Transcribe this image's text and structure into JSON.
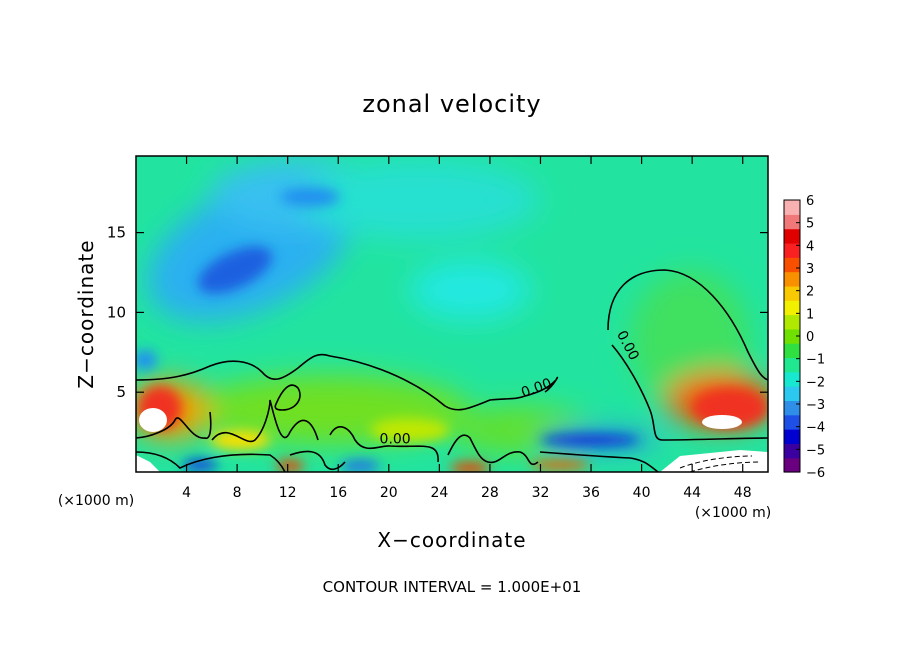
{
  "chart_data": {
    "type": "heatmap",
    "title": "zonal velocity",
    "xlabel": "X−coordinate",
    "ylabel": "Z−coordinate",
    "xlim": [
      0,
      50
    ],
    "ylim": [
      0,
      19.8
    ],
    "x_ticks": [
      4,
      8,
      12,
      16,
      20,
      24,
      28,
      32,
      36,
      40,
      44,
      48
    ],
    "y_ticks": [
      5,
      10,
      15
    ],
    "x_unit_left": "(×1000 m)",
    "x_unit_right": "(×1000 m)",
    "footer": "CONTOUR INTERVAL = 1.000E+01",
    "colorbar": {
      "min": -6,
      "max": 6,
      "tick_values": [
        6,
        5,
        4,
        3,
        2,
        1,
        0,
        -1,
        -2,
        -3,
        -4,
        -5,
        -6
      ],
      "tick_labels": [
        "6",
        "5",
        "4",
        "3",
        "2",
        "1",
        "0",
        "−1",
        "−2",
        "−3",
        "−4",
        "−5",
        "−6"
      ],
      "colors": [
        "#6a0080",
        "#3a00a0",
        "#0000d0",
        "#1e50e8",
        "#2f8fe8",
        "#2cc8f0",
        "#18e8d0",
        "#20e890",
        "#30e040",
        "#70e000",
        "#b0e800",
        "#f0f000",
        "#f8c800",
        "#f89000",
        "#f85000",
        "#f82020",
        "#e00000",
        "#f07878",
        "#f8b0b0"
      ]
    },
    "contour_labels": [
      {
        "x": 20.5,
        "z": 1.8,
        "text": "0.00"
      },
      {
        "x": 31.8,
        "z": 5.0,
        "text": "0.00"
      },
      {
        "x": 38.6,
        "z": 7.8,
        "text": "0.00"
      }
    ]
  }
}
